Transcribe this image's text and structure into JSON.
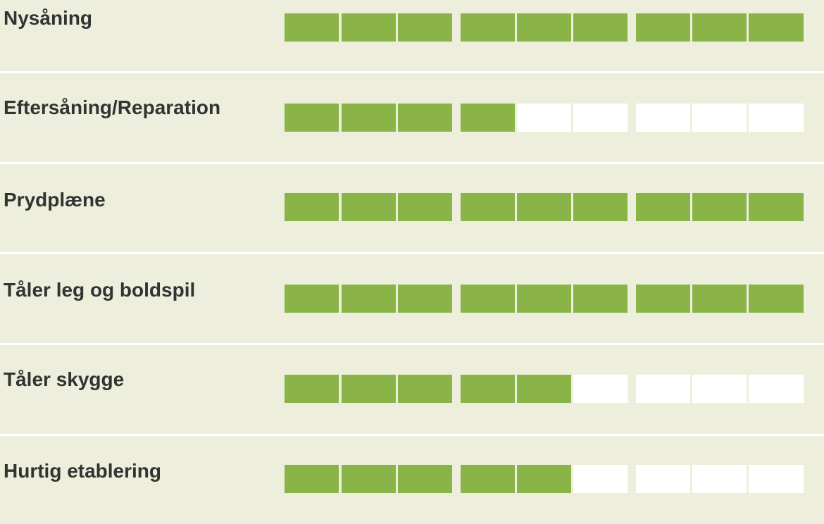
{
  "colors": {
    "background": "#edefdc",
    "filled": "#8ab448",
    "empty": "#ffffff",
    "divider": "#ffffff",
    "label": "#333333"
  },
  "scale_max": 9,
  "rows": [
    {
      "label": "Nysåning",
      "rating": 9
    },
    {
      "label": "Eftersåning/Reparation",
      "rating": 4
    },
    {
      "label": "Prydplæne",
      "rating": 9
    },
    {
      "label": "Tåler leg og boldspil",
      "rating": 9
    },
    {
      "label": "Tåler skygge",
      "rating": 5
    },
    {
      "label": "Hurtig etablering",
      "rating": 5
    }
  ]
}
